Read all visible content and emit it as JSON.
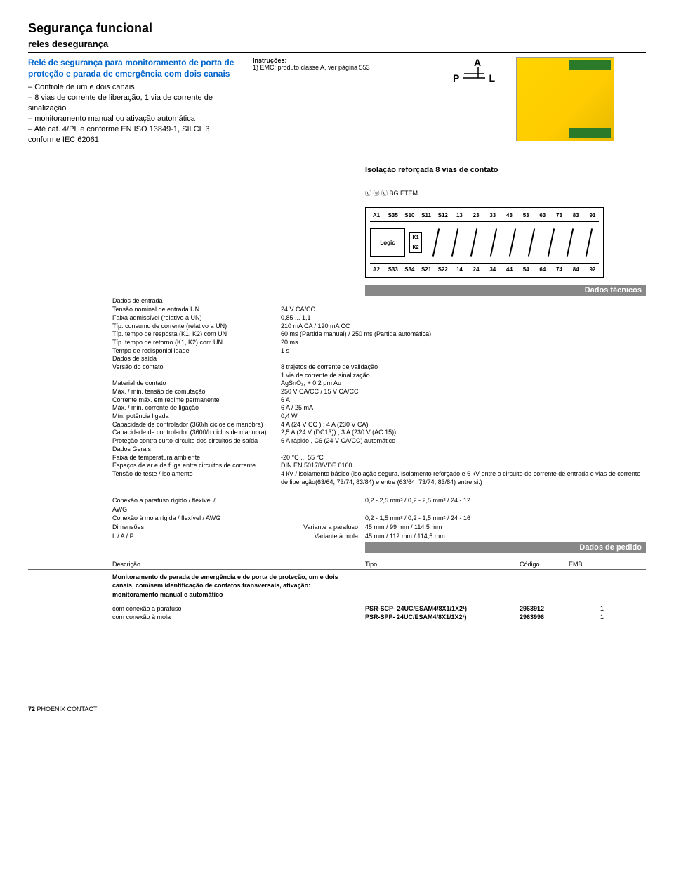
{
  "page": {
    "title": "Segurança funcional",
    "subtitle": "reles desegurança",
    "page_number": "72",
    "brand": "PHOENIX CONTACT"
  },
  "intro": {
    "desc_title": "Relé de segurança para monitoramento de porta de proteção e parada de emergência com dois canais",
    "bullets": [
      "Controle de um e dois canais",
      "8 vias de corrente de liberação, 1 via de corrente de sinalização",
      "monitoramento manual ou ativação automática",
      "Até cat. 4/PL e conforme EN ISO 13849-1, SILCL 3 conforme IEC 62061"
    ]
  },
  "instructions": {
    "title": "Instruções:",
    "line1": "1) EMC: produto classe A, ver página 553"
  },
  "symbol": {
    "a": "A",
    "p": "P",
    "l": "L"
  },
  "iso_line": "Isolação reforçada 8 vias de contato",
  "cert_line": "ⓤ ⓤ ⓤ BG ETEM",
  "schematic": {
    "top_terms": [
      "A1",
      "S35",
      "S10",
      "S11",
      "S12",
      "13",
      "23",
      "33",
      "43",
      "53",
      "63",
      "73",
      "83",
      "91"
    ],
    "bot_terms": [
      "A2",
      "S33",
      "S34",
      "S21",
      "S22",
      "14",
      "24",
      "34",
      "44",
      "54",
      "64",
      "74",
      "84",
      "92"
    ],
    "logic": "Logic",
    "k1": "K1",
    "k2": "K2"
  },
  "tech_header": "Dados técnicos",
  "tech": [
    {
      "group": "Dados de entrada",
      "rows": [
        {
          "l": "Tensão nominal de entrada UN",
          "v": "24 V CA/CC"
        },
        {
          "l": "Faixa admissível (relativo a UN)",
          "v": "0,85 ... 1,1"
        },
        {
          "l": "Típ. consumo de corrente (relativo a UN)",
          "v": "210 mA CA / 120 mA CC"
        },
        {
          "l": "Típ. tempo de resposta (K1, K2) com UN",
          "v": "60 ms (Partida manual) / 250 ms (Partida automática)"
        },
        {
          "l": "Típ. tempo de retorno (K1, K2) com UN",
          "v": "20 ms"
        },
        {
          "l": "Tempo de redisponibilidade",
          "v": "1 s"
        }
      ]
    },
    {
      "group": "Dados de saída",
      "rows": [
        {
          "l": "Versão do contato",
          "v": "8 trajetos de corrente de validação\n1 via de corrente de sinalização"
        },
        {
          "l": "Material de contato",
          "v": "AgSnO₂, + 0,2 μm Au"
        },
        {
          "l": "Máx. / min. tensão de comutação",
          "v": "250 V CA/CC / 15 V CA/CC"
        },
        {
          "l": "Corrente máx. em regime permanente",
          "v": "6 A"
        },
        {
          "l": "Máx. / min. corrente de ligação",
          "v": "6 A / 25 mA"
        },
        {
          "l": "Mín. potência ligada",
          "v": "0,4 W"
        },
        {
          "l": "Capacidade de controlador (360/h ciclos de manobra)",
          "v": "4 A (24 V CC ) ; 4 A (230 V CA)"
        },
        {
          "l": "Capacidade de controlador (3600/h ciclos de manobra)",
          "v": "2,5 A (24 V (DC13)) ; 3 A (230 V (AC 15))"
        },
        {
          "l": "Proteção contra curto-circuito dos circuitos de saída",
          "v": "6 A rápido , C6 (24 V CA/CC) automático"
        }
      ]
    },
    {
      "group": "Dados Gerais",
      "rows": [
        {
          "l": "Faixa de temperatura ambiente",
          "v": "-20 °C ... 55 °C"
        },
        {
          "l": "Espaços de ar e de fuga entre circuitos de corrente",
          "v": "DIN EN 50178/VDE 0160"
        },
        {
          "l": "Tensão de teste / isolamento",
          "v": "4 kV / isolamento básico (isolação segura, isolamento reforçado e 6 kV entre o circuito de corrente de entrada e vias de corrente de liberação(63/64, 73/74, 83/84) e entre (63/64, 73/74, 83/84) entre si.)"
        }
      ]
    }
  ],
  "conn": [
    {
      "l": "Conexão a parafuso rígido / flexível / AWG",
      "m": "",
      "v": "0,2 - 2,5 mm² / 0,2 - 2,5 mm² / 24 - 12"
    },
    {
      "l": "Conexão à mola rígida / flexível / AWG",
      "m": "",
      "v": "0,2 - 1,5 mm² / 0,2 - 1,5 mm² / 24 - 16"
    },
    {
      "l": "Dimensões",
      "m": "Variante a parafuso",
      "v": "45 mm / 99 mm / 114,5 mm"
    },
    {
      "l": "L / A / P",
      "m": "Variante à mola",
      "v": "45 mm / 112 mm / 114,5 mm"
    }
  ],
  "order_header": "Dados de pedido",
  "order_cols": {
    "c1": "Descrição",
    "c2": "Tipo",
    "c3": "Código",
    "c4": "EMB."
  },
  "order_desc": "Monitoramento de parada de emergência e de porta de proteção, um e dois canais, com/sem identificação de contatos transversais, ativação: monitoramento manual e automático",
  "order_rows": [
    {
      "l": "com conexão a parafuso",
      "t": "PSR-SCP- 24UC/ESAM4/8X1/1X2¹)",
      "c": "2963912",
      "e": "1"
    },
    {
      "l": "com conexão à mola",
      "t": "PSR-SPP- 24UC/ESAM4/8X1/1X2¹)",
      "c": "2963996",
      "e": "1"
    }
  ]
}
